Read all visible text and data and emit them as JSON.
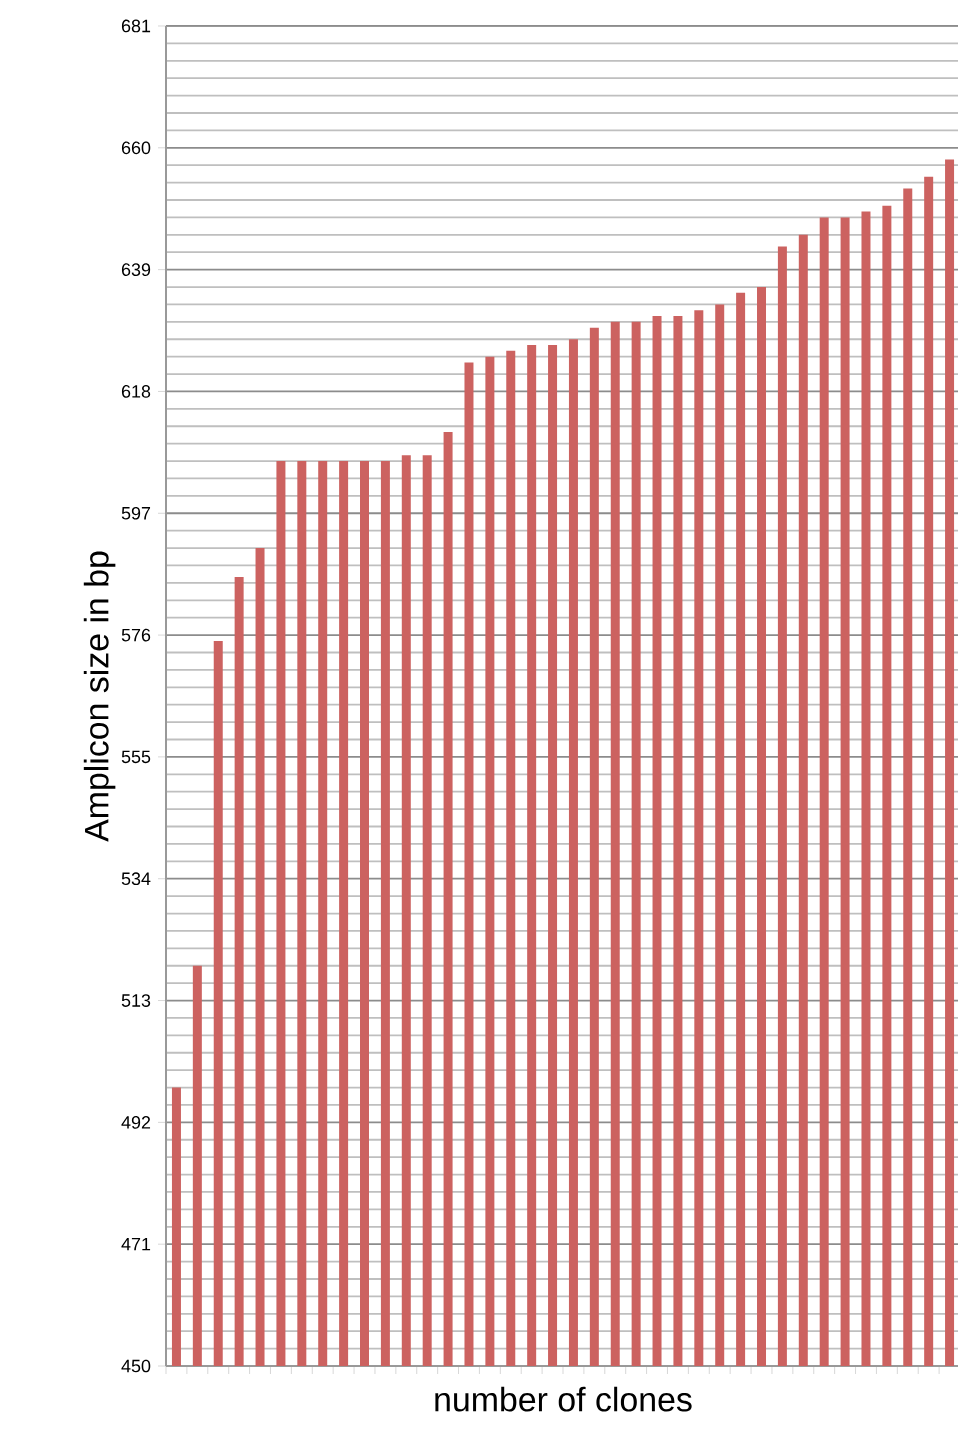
{
  "chart_data": {
    "type": "bar",
    "xlabel": "number of clones",
    "ylabel": "Amplicon size in bp",
    "categories": [
      null,
      null,
      null,
      null,
      null,
      null,
      null,
      null,
      null,
      null,
      null,
      null,
      null,
      null,
      null,
      null,
      null,
      null,
      null,
      null,
      null,
      null,
      null,
      null,
      null,
      null,
      null,
      null,
      null,
      null,
      null,
      null,
      null,
      null,
      null,
      null,
      null,
      null
    ],
    "values": [
      498,
      519,
      575,
      586,
      591,
      606,
      606,
      606,
      606,
      606,
      606,
      607,
      607,
      611,
      623,
      624,
      625,
      626,
      626,
      627,
      629,
      630,
      630,
      631,
      631,
      632,
      633,
      635,
      636,
      643,
      645,
      648,
      648,
      649,
      650,
      653,
      655,
      658
    ],
    "color": "#cc6260",
    "ylim": [
      450,
      681
    ],
    "yticks": [
      450,
      471,
      492,
      513,
      534,
      555,
      576,
      597,
      618,
      639,
      660,
      681
    ],
    "grid": "y",
    "tick_labels": "y"
  }
}
